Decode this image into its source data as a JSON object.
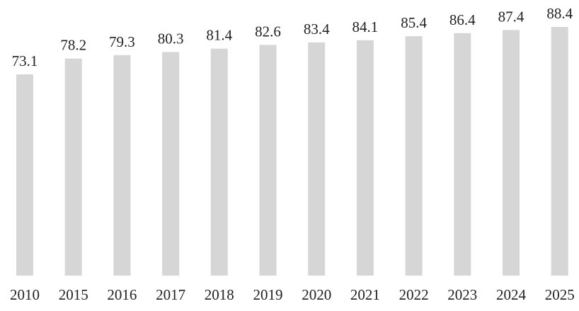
{
  "chart_data": {
    "type": "bar",
    "categories": [
      "2010",
      "2015",
      "2016",
      "2017",
      "2018",
      "2019",
      "2020",
      "2021",
      "2022",
      "2023",
      "2024",
      "2025"
    ],
    "values": [
      73.1,
      78.2,
      79.3,
      80.3,
      81.4,
      82.6,
      83.4,
      84.1,
      85.4,
      86.4,
      87.4,
      88.4
    ],
    "value_labels": [
      "73.1",
      "78.2",
      "79.3",
      "80.3",
      "81.4",
      "82.6",
      "83.4",
      "84.1",
      "85.4",
      "86.4",
      "87.4",
      "88.4"
    ],
    "title": "",
    "xlabel": "",
    "ylabel": "",
    "grid": false,
    "legend": "none",
    "bar_color": "#d6d6d6",
    "text_color": "#222222"
  }
}
